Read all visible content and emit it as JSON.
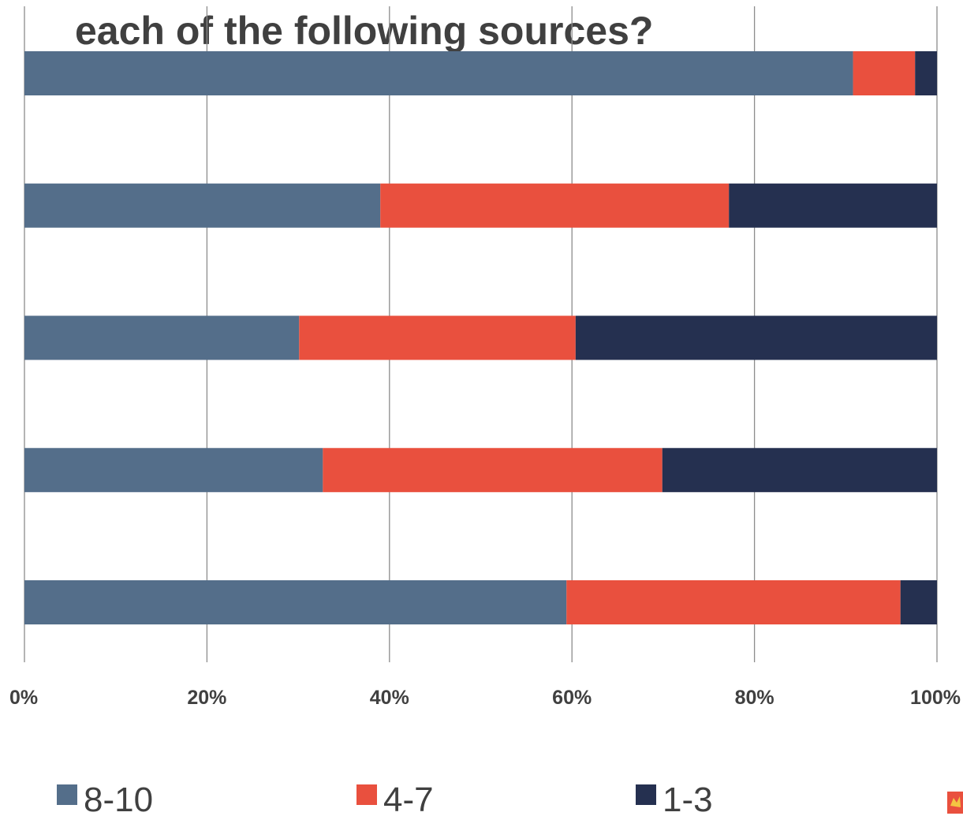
{
  "chart_data": {
    "type": "bar",
    "orientation": "horizontal",
    "stacked": "100%",
    "title_lines": [
      "each of the following sources?"
    ],
    "xlabel": "",
    "ylabel": "",
    "xlim": [
      0,
      100
    ],
    "x_ticks": [
      "0%",
      "20%",
      "40%",
      "60%",
      "80%",
      "100%"
    ],
    "grid": true,
    "legend_position": "bottom",
    "categories": [
      "",
      "",
      "",
      "",
      ""
    ],
    "series": [
      {
        "name": "8-10",
        "color": "#546e8a",
        "values": [
          90.8,
          39.0,
          30.1,
          32.7,
          59.4
        ]
      },
      {
        "name": "4-7",
        "color": "#e9503e",
        "values": [
          6.8,
          38.2,
          30.3,
          37.2,
          36.6
        ]
      },
      {
        "name": "1-3",
        "color": "#253050",
        "values": [
          2.4,
          22.8,
          39.6,
          30.1,
          4.0
        ]
      }
    ]
  },
  "logo": {
    "name": "logo-icon",
    "color": "#e9503e"
  }
}
